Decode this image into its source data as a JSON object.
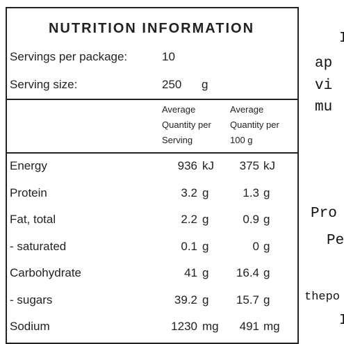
{
  "panel": {
    "title": "NUTRITION INFORMATION",
    "servings": {
      "label": "Servings per package:",
      "value": 10
    },
    "serving_size": {
      "label": "Serving size:",
      "value": 250,
      "unit": "g"
    },
    "headers": {
      "serving": [
        "Average",
        "Quantity per",
        "Serving"
      ],
      "per100": [
        "Average",
        "Quantity per",
        "100 g"
      ]
    },
    "rows": [
      {
        "label": "Energy",
        "serving": 936,
        "serving_unit": "kJ",
        "per100": 375,
        "per100_unit": "kJ"
      },
      {
        "label": "Protein",
        "serving": 3.2,
        "serving_unit": "g",
        "per100": 1.3,
        "per100_unit": "g"
      },
      {
        "label": "Fat, total",
        "serving": 2.2,
        "serving_unit": "g",
        "per100": 0.9,
        "per100_unit": "g"
      },
      {
        "label": "- saturated",
        "serving": 0.1,
        "serving_unit": "g",
        "per100": 0,
        "per100_unit": "g"
      },
      {
        "label": "Carbohydrate",
        "serving": 41,
        "serving_unit": "g",
        "per100": 16.4,
        "per100_unit": "g"
      },
      {
        "label": "- sugars",
        "serving": 39.2,
        "serving_unit": "g",
        "per100": 15.7,
        "per100_unit": "g"
      },
      {
        "label": "Sodium",
        "serving": 1230,
        "serving_unit": "mg",
        "per100": 491,
        "per100_unit": "mg"
      }
    ]
  },
  "side_text": [
    "I",
    "ap",
    "vi",
    "mu",
    "Pro",
    "Pe",
    "thepo",
    "I"
  ]
}
